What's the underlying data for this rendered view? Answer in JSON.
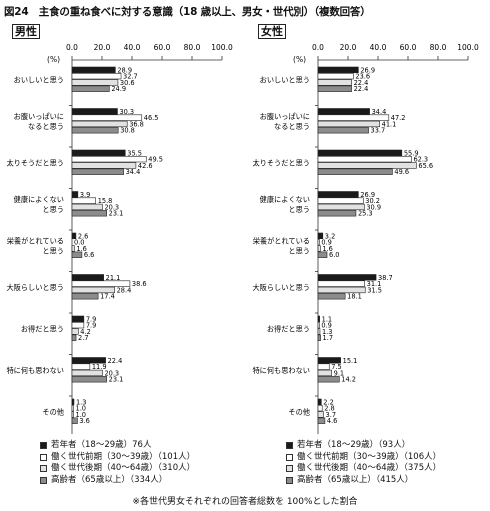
{
  "title": "図24　主食の重ね食べに対する意識（18 歳以上、男女・世代別）（複数回答）",
  "footnote": "※各世代男女それぞれの回答者総数を 100%とした割合",
  "chart_data": [
    {
      "type": "bar",
      "orientation": "horizontal",
      "panel_label": "男性",
      "unit_label": "(%)",
      "xlim": [
        0,
        100
      ],
      "xticks": [
        "0.0",
        "20.0",
        "40.0",
        "60.0",
        "80.0",
        "100.0"
      ],
      "categories": [
        [
          "おいしいと思う"
        ],
        [
          "お腹いっぱいに",
          "なると思う"
        ],
        [
          "太りそうだと思う"
        ],
        [
          "健康によくない",
          "と思う"
        ],
        [
          "栄養がとれている",
          "と思う"
        ],
        [
          "大阪らしいと思う"
        ],
        [
          "お得だと思う"
        ],
        [
          "特に何も思わない"
        ],
        [
          "その他"
        ]
      ],
      "series": [
        {
          "name": "若年者（18～29歳）76人",
          "color": "#1a1a1a",
          "values": [
            28.9,
            30.3,
            35.5,
            3.9,
            2.6,
            21.1,
            7.9,
            22.4,
            1.3
          ]
        },
        {
          "name": "働く世代前期（30～39歳）（101人）",
          "color": "#ffffff",
          "values": [
            32.7,
            46.5,
            49.5,
            15.8,
            0.0,
            38.6,
            7.9,
            11.9,
            1.0
          ]
        },
        {
          "name": "働く世代後期（40～64歳）（310人）",
          "color": "#e2e2e2",
          "values": [
            30.6,
            36.8,
            42.6,
            20.3,
            1.6,
            28.4,
            4.2,
            20.3,
            1.0
          ]
        },
        {
          "name": "高齢者（65歳以上）（334人）",
          "color": "#8c8c8c",
          "values": [
            24.9,
            30.8,
            34.4,
            23.1,
            6.6,
            17.4,
            2.7,
            23.1,
            3.6
          ]
        }
      ]
    },
    {
      "type": "bar",
      "orientation": "horizontal",
      "panel_label": "女性",
      "unit_label": "(%)",
      "xlim": [
        0,
        100
      ],
      "xticks": [
        "0.0",
        "20.0",
        "40.0",
        "60.0",
        "80.0",
        "100.0"
      ],
      "categories": [
        [
          "おいしいと思う"
        ],
        [
          "お腹いっぱいに",
          "なると思う"
        ],
        [
          "太りそうだと思う"
        ],
        [
          "健康によくない",
          "と思う"
        ],
        [
          "栄養がとれている",
          "と思う"
        ],
        [
          "大阪らしいと思う"
        ],
        [
          "お得だと思う"
        ],
        [
          "特に何も思わない"
        ],
        [
          "その他"
        ]
      ],
      "series": [
        {
          "name": "若年者（18～29歳）（93人）",
          "color": "#1a1a1a",
          "values": [
            26.9,
            34.4,
            55.9,
            26.9,
            3.2,
            38.7,
            1.1,
            15.1,
            2.2
          ]
        },
        {
          "name": "働く世代前期（30～39歳）（106人）",
          "color": "#ffffff",
          "values": [
            23.6,
            47.2,
            62.3,
            30.2,
            0.9,
            31.1,
            0.9,
            7.5,
            2.8
          ]
        },
        {
          "name": "働く世代後期（40～64歳）（375人）",
          "color": "#e2e2e2",
          "values": [
            22.4,
            41.1,
            65.6,
            30.9,
            1.6,
            31.5,
            1.3,
            9.1,
            3.7
          ]
        },
        {
          "name": "高齢者（65歳以上）（415人）",
          "color": "#8c8c8c",
          "values": [
            22.4,
            33.7,
            49.6,
            25.3,
            6.0,
            18.1,
            1.7,
            14.2,
            4.6
          ]
        }
      ]
    }
  ]
}
